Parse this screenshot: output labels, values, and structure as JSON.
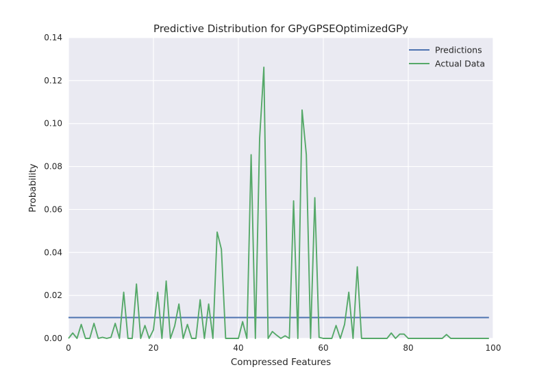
{
  "chart_data": {
    "type": "line",
    "title": "Predictive Distribution for GPyGPSEOptimizedGPy",
    "xlabel": "Compressed Features",
    "ylabel": "Probability",
    "xlim": [
      0,
      100
    ],
    "ylim": [
      0,
      0.14
    ],
    "xticks": [
      0,
      20,
      40,
      60,
      80,
      100
    ],
    "xtick_labels": [
      "0",
      "20",
      "40",
      "60",
      "80",
      "100"
    ],
    "yticks": [
      0,
      0.02,
      0.04,
      0.06,
      0.08,
      0.1,
      0.12,
      0.14
    ],
    "ytick_labels": [
      "0.00",
      "0.02",
      "0.04",
      "0.06",
      "0.08",
      "0.10",
      "0.12",
      "0.14"
    ],
    "grid": true,
    "legend": "top-right",
    "colors": {
      "background": "#eaeaf2",
      "grid": "#ffffff",
      "predictions": "#4c72b0",
      "actual": "#55a868"
    },
    "series": [
      {
        "name": "Predictions",
        "x": [
          0,
          99
        ],
        "y": [
          0.0097,
          0.0097
        ]
      },
      {
        "name": "Actual Data",
        "x": [
          0,
          1,
          2,
          3,
          4,
          5,
          6,
          7,
          8,
          9,
          10,
          11,
          12,
          13,
          14,
          15,
          16,
          17,
          18,
          19,
          20,
          21,
          22,
          23,
          24,
          25,
          26,
          27,
          28,
          29,
          30,
          31,
          32,
          33,
          34,
          35,
          36,
          37,
          38,
          39,
          40,
          41,
          42,
          43,
          44,
          45,
          46,
          47,
          48,
          49,
          50,
          51,
          52,
          53,
          54,
          55,
          56,
          57,
          58,
          59,
          60,
          61,
          62,
          63,
          64,
          65,
          66,
          67,
          68,
          69,
          70,
          71,
          72,
          73,
          74,
          75,
          76,
          77,
          78,
          79,
          80,
          81,
          82,
          83,
          84,
          85,
          86,
          87,
          88,
          89,
          90,
          91,
          92,
          93,
          94,
          95,
          96,
          97,
          98,
          99
        ],
        "y": [
          0,
          0.0025,
          0,
          0.0065,
          0,
          0,
          0.007,
          0,
          0.0005,
          0,
          0.0005,
          0.007,
          0,
          0.0215,
          0,
          0,
          0.0253,
          0,
          0.006,
          0,
          0.004,
          0.0215,
          0,
          0.0267,
          0,
          0.0058,
          0.016,
          0,
          0.0065,
          0,
          0,
          0.018,
          0,
          0.016,
          0,
          0.0495,
          0.0415,
          0,
          0,
          0,
          0,
          0.0078,
          0,
          0.0855,
          0,
          0.093,
          0.1262,
          0,
          0.0032,
          0.0015,
          0,
          0.0012,
          0,
          0.064,
          0,
          0.1063,
          0.0855,
          0,
          0.0655,
          0.0005,
          0,
          0,
          0,
          0.006,
          0,
          0.0065,
          0.0215,
          0,
          0.0333,
          0,
          0,
          0,
          0,
          0,
          0,
          0,
          0.0025,
          0,
          0.002,
          0.002,
          0,
          0,
          0,
          0,
          0,
          0,
          0,
          0,
          0,
          0.0018,
          0,
          0,
          0,
          0,
          0,
          0,
          0,
          0,
          0,
          0
        ]
      }
    ]
  }
}
